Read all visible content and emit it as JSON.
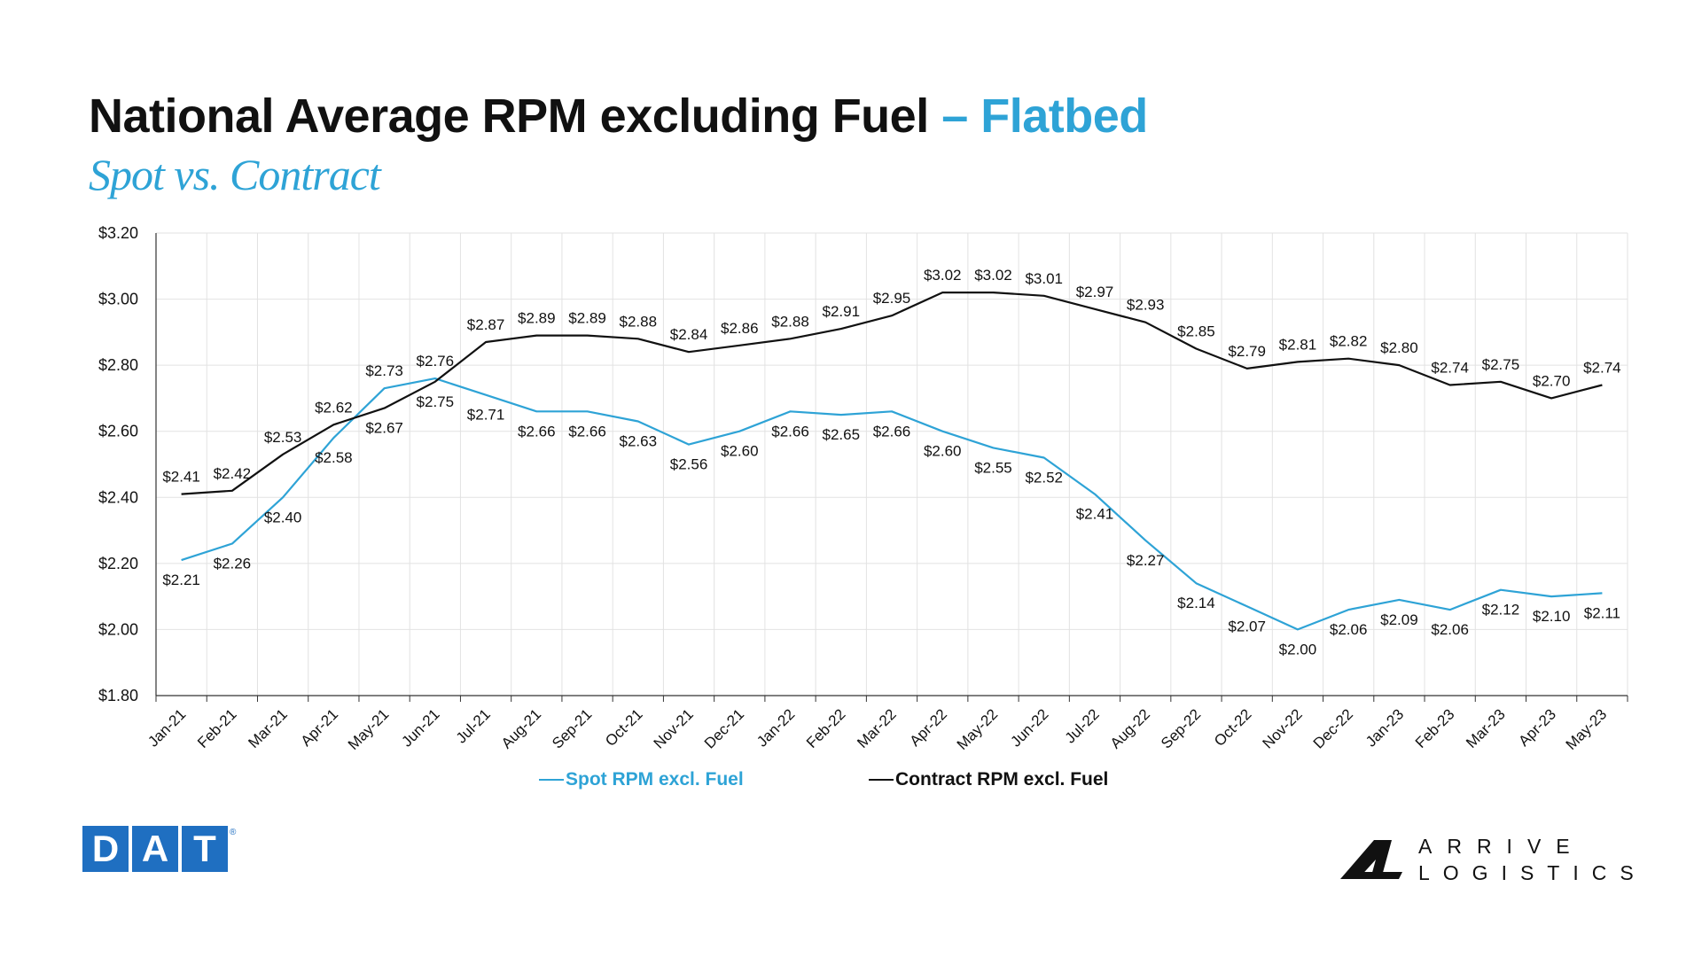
{
  "title": {
    "main": "National Average RPM excluding Fuel",
    "accent": "– Flatbed"
  },
  "subtitle": "Spot vs. Contract",
  "colors": {
    "spot": "#2ea3d6",
    "contract": "#111111",
    "grid": "#e2e2e2",
    "axis": "#333333",
    "dat_blue": "#1f6fc1"
  },
  "chart_data": {
    "type": "line",
    "categories": [
      "Jan-21",
      "Feb-21",
      "Mar-21",
      "Apr-21",
      "May-21",
      "Jun-21",
      "Jul-21",
      "Aug-21",
      "Sep-21",
      "Oct-21",
      "Nov-21",
      "Dec-21",
      "Jan-22",
      "Feb-22",
      "Mar-22",
      "Apr-22",
      "May-22",
      "Jun-22",
      "Jul-22",
      "Aug-22",
      "Sep-22",
      "Oct-22",
      "Nov-22",
      "Dec-22",
      "Jan-23",
      "Feb-23",
      "Mar-23",
      "Apr-23",
      "May-23"
    ],
    "series": [
      {
        "name": "Spot RPM excl. Fuel",
        "color": "#2ea3d6",
        "values": [
          2.21,
          2.26,
          2.4,
          2.58,
          2.73,
          2.76,
          2.71,
          2.66,
          2.66,
          2.63,
          2.56,
          2.6,
          2.66,
          2.65,
          2.66,
          2.6,
          2.55,
          2.52,
          2.41,
          2.27,
          2.14,
          2.07,
          2.0,
          2.06,
          2.09,
          2.06,
          2.12,
          2.1,
          2.11
        ]
      },
      {
        "name": "Contract RPM excl. Fuel",
        "color": "#111111",
        "values": [
          2.41,
          2.42,
          2.53,
          2.62,
          2.67,
          2.75,
          2.87,
          2.89,
          2.89,
          2.88,
          2.84,
          2.86,
          2.88,
          2.91,
          2.95,
          3.02,
          3.02,
          3.01,
          2.97,
          2.93,
          2.85,
          2.79,
          2.81,
          2.82,
          2.8,
          2.74,
          2.75,
          2.7,
          2.74
        ]
      }
    ],
    "ylim": [
      1.8,
      3.2
    ],
    "yticks": [
      1.8,
      2.0,
      2.2,
      2.4,
      2.6,
      2.8,
      3.0,
      3.2
    ],
    "ytick_labels": [
      "$1.80",
      "$2.00",
      "$2.20",
      "$2.40",
      "$2.60",
      "$2.80",
      "$3.00",
      "$3.20"
    ],
    "grid": true,
    "legend_position": "bottom"
  },
  "logos": {
    "dat": [
      "D",
      "A",
      "T"
    ],
    "dat_reg": "®",
    "arrive_line1": "ARRIVE",
    "arrive_line2": "LOGISTICS"
  }
}
